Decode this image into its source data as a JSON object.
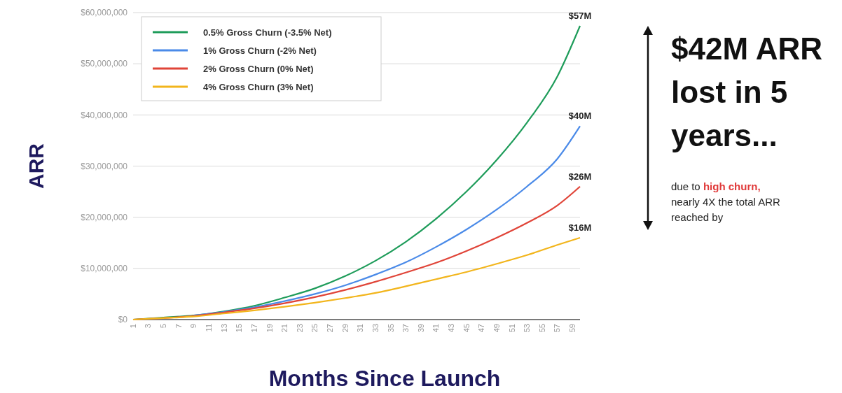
{
  "chart_data": {
    "type": "line",
    "xlabel": "Months Since Launch",
    "ylabel": "ARR",
    "x": [
      1,
      5,
      9,
      13,
      17,
      21,
      25,
      29,
      33,
      37,
      41,
      45,
      49,
      53,
      57,
      60
    ],
    "xlim": [
      1,
      60
    ],
    "xticks": [
      1,
      3,
      5,
      7,
      9,
      11,
      13,
      15,
      17,
      19,
      21,
      23,
      25,
      27,
      29,
      31,
      33,
      35,
      37,
      39,
      41,
      43,
      45,
      47,
      49,
      51,
      53,
      55,
      57,
      59
    ],
    "ylim": [
      0,
      60000000
    ],
    "yticks": [
      {
        "value": 0,
        "label": "$0"
      },
      {
        "value": 10000000,
        "label": "$10,000,000"
      },
      {
        "value": 20000000,
        "label": "$20,000,000"
      },
      {
        "value": 30000000,
        "label": "$30,000,000"
      },
      {
        "value": 40000000,
        "label": "$40,000,000"
      },
      {
        "value": 50000000,
        "label": "$50,000,000"
      },
      {
        "value": 60000000,
        "label": "$60,000,000"
      }
    ],
    "grid": "y",
    "legend": "top left",
    "line_style": "solid",
    "series": [
      {
        "name": "0.5% Gross Churn (-3.5% Net)",
        "color": "#1e9c5a",
        "values": [
          0,
          400000,
          800000,
          1600000,
          2700000,
          4300000,
          6100000,
          8500000,
          11500000,
          15200000,
          19700000,
          25000000,
          31200000,
          38500000,
          47500000,
          57400000
        ]
      },
      {
        "name": "1% Gross Churn (-2% Net)",
        "color": "#4a8ae8",
        "values": [
          null,
          null,
          800000,
          1500000,
          2400000,
          3600000,
          5000000,
          6700000,
          8800000,
          11200000,
          14200000,
          17600000,
          21500000,
          26000000,
          31400000,
          37800000
        ]
      },
      {
        "name": "2% Gross Churn (0% Net)",
        "color": "#e04438",
        "values": [
          0,
          300000,
          700000,
          1400000,
          2200000,
          3200000,
          4400000,
          5800000,
          7400000,
          9200000,
          11100000,
          13400000,
          16000000,
          18900000,
          22300000,
          26000000
        ]
      },
      {
        "name": "4% Gross Churn (3% Net)",
        "color": "#f2b51c",
        "values": [
          0,
          300000,
          600000,
          1200000,
          1800000,
          2500000,
          3300000,
          4200000,
          5200000,
          6500000,
          7900000,
          9300000,
          10900000,
          12600000,
          14600000,
          16000000
        ]
      }
    ],
    "annotations": [
      {
        "text": "$57M",
        "y": 57400000
      },
      {
        "text": "$40M",
        "y": 37800000
      },
      {
        "text": "$26M",
        "y": 26000000
      },
      {
        "text": "$16M",
        "y": 16000000
      },
      "$42M ARR lost in 5 years...",
      "due to",
      "high churn,",
      "nearly 4X the total ARR reached by"
    ]
  }
}
